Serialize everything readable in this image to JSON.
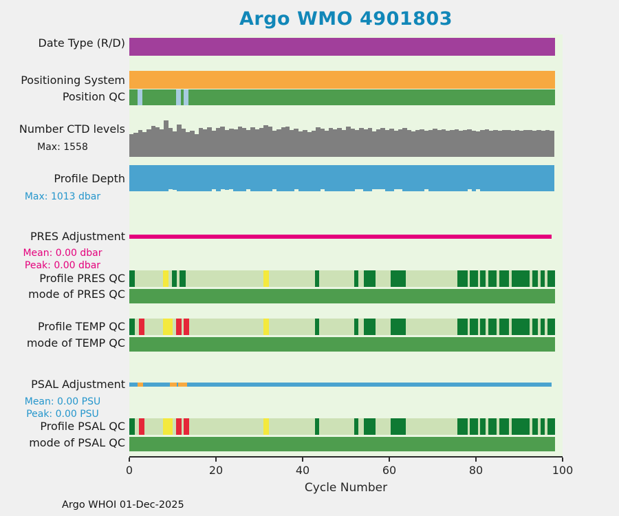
{
  "title": "Argo WMO 4901803",
  "labels": {
    "date_type": "Date Type (R/D)",
    "positioning_system": "Positioning System",
    "position_qc": "Position QC",
    "ctd_levels": "Number CTD levels",
    "ctd_max": "Max: 1558",
    "profile_depth": "Profile Depth",
    "depth_max": "Max: 1013 dbar",
    "pres_adjustment": "PRES Adjustment",
    "pres_mean": "Mean: 0.00 dbar",
    "pres_peak": "Peak: 0.00 dbar",
    "profile_pres_qc": "Profile PRES QC",
    "mode_pres_qc": "mode of PRES QC",
    "profile_temp_qc": "Profile TEMP QC",
    "mode_temp_qc": "mode of TEMP QC",
    "psal_adjustment": "PSAL Adjustment",
    "psal_mean": "Mean: 0.00 PSU",
    "psal_peak": "Peak: 0.00 PSU",
    "profile_psal_qc": "Profile PSAL QC",
    "mode_psal_qc": "mode of PSAL QC"
  },
  "axis": {
    "xlabel": "Cycle Number",
    "ticks": [
      "0",
      "20",
      "40",
      "60",
      "80",
      "100"
    ]
  },
  "footer": "Argo WHOI 01-Dec-2025",
  "chart_data": {
    "type": "heatmap",
    "title": "Argo WMO 4901803",
    "xlabel": "Cycle Number",
    "xlim": [
      0,
      100
    ],
    "x_ticks": [
      0,
      20,
      40,
      60,
      80,
      100
    ],
    "cycle_extent": [
      0,
      98.2
    ],
    "stats": {
      "ctd_levels_max": 1558,
      "profile_depth_max_dbar": 1013,
      "pres_adjustment_mean_dbar": 0.0,
      "pres_adjustment_peak_dbar": 0.0,
      "psal_adjustment_mean_psu": 0.0,
      "psal_adjustment_peak_psu": 0.0
    },
    "palette": {
      "purple": "#a13f9b",
      "orange": "#f7a941",
      "green": "#4e9d4e",
      "lightblue": "#a7cbe0",
      "gray": "#7f7f7f",
      "blue": "#4aa3cf",
      "magenta": "#e4007c",
      "qc_light": "#cde1b6",
      "qc_dark": "#0e7a33",
      "qc_yellow": "#f4e93d",
      "qc_red": "#e52639",
      "title": "#1187b8"
    },
    "rows": [
      {
        "id": "date_type",
        "kind": "strip",
        "base_color": "purple",
        "segments": []
      },
      {
        "id": "positioning_system",
        "kind": "strip",
        "base_color": "orange",
        "segments": []
      },
      {
        "id": "position_qc",
        "kind": "strip",
        "base_color": "green",
        "segments": [
          {
            "from": 1.9,
            "to": 3.0,
            "color": "lightblue"
          },
          {
            "from": 10.8,
            "to": 11.9,
            "color": "lightblue"
          },
          {
            "from": 12.5,
            "to": 13.6,
            "color": "lightblue"
          }
        ]
      },
      {
        "id": "ctd_levels",
        "kind": "bars_up",
        "color": "gray",
        "max": 1558,
        "values": [
          980,
          1020,
          1150,
          1060,
          1190,
          1320,
          1250,
          1180,
          1558,
          1240,
          1100,
          1380,
          1210,
          1050,
          1120,
          980,
          1230,
          1190,
          1260,
          1110,
          1240,
          1280,
          1150,
          1210,
          1190,
          1300,
          1230,
          1150,
          1260,
          1190,
          1220,
          1340,
          1280,
          1120,
          1190,
          1250,
          1300,
          1150,
          1200,
          1100,
          1160,
          1060,
          1120,
          1250,
          1210,
          1130,
          1220,
          1180,
          1240,
          1160,
          1290,
          1210,
          1140,
          1220,
          1190,
          1230,
          1100,
          1180,
          1240,
          1150,
          1210,
          1120,
          1180,
          1220,
          1160,
          1100,
          1150,
          1190,
          1130,
          1160,
          1200,
          1140,
          1170,
          1110,
          1150,
          1180,
          1120,
          1160,
          1190,
          1130,
          1100,
          1140,
          1170,
          1120,
          1150,
          1110,
          1140,
          1160,
          1120,
          1150,
          1130,
          1160,
          1140,
          1120,
          1150,
          1130,
          1140,
          1120
        ]
      },
      {
        "id": "profile_depth",
        "kind": "bars_down",
        "color": "blue",
        "max": 1013,
        "values": [
          1013,
          1013,
          1013,
          1013,
          1013,
          1013,
          1013,
          1013,
          1013,
          920,
          960,
          1013,
          1013,
          1013,
          1013,
          1013,
          1013,
          1013,
          1013,
          930,
          1013,
          920,
          950,
          930,
          1013,
          1013,
          1013,
          940,
          1013,
          1013,
          1013,
          1013,
          1013,
          930,
          1013,
          1013,
          1013,
          1013,
          940,
          1013,
          1013,
          1013,
          1013,
          1013,
          930,
          1013,
          1013,
          1013,
          1013,
          1013,
          1013,
          1013,
          920,
          945,
          1013,
          1013,
          930,
          920,
          945,
          1013,
          1013,
          930,
          920,
          1013,
          1013,
          1013,
          1013,
          1013,
          940,
          1013,
          1013,
          1013,
          1013,
          1013,
          1013,
          1013,
          1013,
          1013,
          930,
          1013,
          940,
          1013,
          1013,
          1013,
          1013,
          1013,
          1013,
          1013,
          1013,
          1013,
          1013,
          1013,
          1013,
          1013,
          1013,
          1013,
          1013,
          1013
        ]
      },
      {
        "id": "pres_adjustment",
        "kind": "line",
        "base_color": "magenta",
        "extent": [
          0,
          97.5
        ],
        "segments": []
      },
      {
        "id": "profile_pres_qc",
        "kind": "strip",
        "base_color": "qc_light",
        "segments": [
          {
            "from": 0.0,
            "to": 1.3,
            "color": "qc_dark"
          },
          {
            "from": 7.8,
            "to": 9.0,
            "color": "qc_yellow"
          },
          {
            "from": 9.8,
            "to": 11.0,
            "color": "qc_dark"
          },
          {
            "from": 11.6,
            "to": 13.0,
            "color": "qc_dark"
          },
          {
            "from": 31.0,
            "to": 32.2,
            "color": "qc_yellow"
          },
          {
            "from": 42.9,
            "to": 43.8,
            "color": "qc_dark"
          },
          {
            "from": 51.9,
            "to": 52.9,
            "color": "qc_dark"
          },
          {
            "from": 54.1,
            "to": 56.8,
            "color": "qc_dark"
          },
          {
            "from": 60.3,
            "to": 63.8,
            "color": "qc_dark"
          },
          {
            "from": 75.7,
            "to": 78.1,
            "color": "qc_dark"
          },
          {
            "from": 78.6,
            "to": 80.5,
            "color": "qc_dark"
          },
          {
            "from": 81.0,
            "to": 82.2,
            "color": "qc_dark"
          },
          {
            "from": 82.9,
            "to": 84.8,
            "color": "qc_dark"
          },
          {
            "from": 85.4,
            "to": 87.6,
            "color": "qc_dark"
          },
          {
            "from": 88.3,
            "to": 92.4,
            "color": "qc_dark"
          },
          {
            "from": 93.0,
            "to": 94.3,
            "color": "qc_dark"
          },
          {
            "from": 94.9,
            "to": 95.9,
            "color": "qc_dark"
          },
          {
            "from": 96.5,
            "to": 98.2,
            "color": "qc_dark"
          }
        ]
      },
      {
        "id": "mode_pres_qc",
        "kind": "strip",
        "base_color": "green",
        "segments": []
      },
      {
        "id": "profile_temp_qc",
        "kind": "strip",
        "base_color": "qc_light",
        "segments": [
          {
            "from": 0.0,
            "to": 1.3,
            "color": "qc_dark"
          },
          {
            "from": 2.2,
            "to": 3.5,
            "color": "qc_red"
          },
          {
            "from": 7.8,
            "to": 10.0,
            "color": "qc_yellow"
          },
          {
            "from": 10.8,
            "to": 12.1,
            "color": "qc_red"
          },
          {
            "from": 12.5,
            "to": 13.8,
            "color": "qc_red"
          },
          {
            "from": 31.0,
            "to": 32.2,
            "color": "qc_yellow"
          },
          {
            "from": 42.9,
            "to": 43.8,
            "color": "qc_dark"
          },
          {
            "from": 51.9,
            "to": 52.9,
            "color": "qc_dark"
          },
          {
            "from": 54.1,
            "to": 56.8,
            "color": "qc_dark"
          },
          {
            "from": 60.3,
            "to": 63.8,
            "color": "qc_dark"
          },
          {
            "from": 75.7,
            "to": 78.1,
            "color": "qc_dark"
          },
          {
            "from": 78.6,
            "to": 80.5,
            "color": "qc_dark"
          },
          {
            "from": 81.0,
            "to": 82.2,
            "color": "qc_dark"
          },
          {
            "from": 82.9,
            "to": 84.8,
            "color": "qc_dark"
          },
          {
            "from": 85.4,
            "to": 87.6,
            "color": "qc_dark"
          },
          {
            "from": 88.3,
            "to": 92.4,
            "color": "qc_dark"
          },
          {
            "from": 93.0,
            "to": 94.3,
            "color": "qc_dark"
          },
          {
            "from": 94.9,
            "to": 95.9,
            "color": "qc_dark"
          },
          {
            "from": 96.5,
            "to": 98.2,
            "color": "qc_dark"
          }
        ]
      },
      {
        "id": "mode_temp_qc",
        "kind": "strip",
        "base_color": "green",
        "segments": []
      },
      {
        "id": "psal_adjustment",
        "kind": "line",
        "base_color": "blue",
        "extent": [
          0,
          97.5
        ],
        "segments": [
          {
            "from": 1.9,
            "to": 3.2,
            "color": "orange"
          },
          {
            "from": 9.4,
            "to": 11.0,
            "color": "orange"
          },
          {
            "from": 11.3,
            "to": 13.3,
            "color": "orange"
          }
        ]
      },
      {
        "id": "profile_psal_qc",
        "kind": "strip",
        "base_color": "qc_light",
        "segments": [
          {
            "from": 0.0,
            "to": 1.3,
            "color": "qc_dark"
          },
          {
            "from": 2.2,
            "to": 3.5,
            "color": "qc_red"
          },
          {
            "from": 7.8,
            "to": 10.0,
            "color": "qc_yellow"
          },
          {
            "from": 10.8,
            "to": 12.1,
            "color": "qc_red"
          },
          {
            "from": 12.5,
            "to": 13.8,
            "color": "qc_red"
          },
          {
            "from": 31.0,
            "to": 32.2,
            "color": "qc_yellow"
          },
          {
            "from": 42.9,
            "to": 43.8,
            "color": "qc_dark"
          },
          {
            "from": 51.9,
            "to": 52.9,
            "color": "qc_dark"
          },
          {
            "from": 54.1,
            "to": 56.8,
            "color": "qc_dark"
          },
          {
            "from": 60.3,
            "to": 63.8,
            "color": "qc_dark"
          },
          {
            "from": 75.7,
            "to": 78.1,
            "color": "qc_dark"
          },
          {
            "from": 78.6,
            "to": 80.5,
            "color": "qc_dark"
          },
          {
            "from": 81.0,
            "to": 82.2,
            "color": "qc_dark"
          },
          {
            "from": 82.9,
            "to": 84.8,
            "color": "qc_dark"
          },
          {
            "from": 85.4,
            "to": 87.6,
            "color": "qc_dark"
          },
          {
            "from": 88.3,
            "to": 92.4,
            "color": "qc_dark"
          },
          {
            "from": 93.0,
            "to": 94.3,
            "color": "qc_dark"
          },
          {
            "from": 94.9,
            "to": 95.9,
            "color": "qc_dark"
          },
          {
            "from": 96.5,
            "to": 98.2,
            "color": "qc_dark"
          }
        ]
      },
      {
        "id": "mode_psal_qc",
        "kind": "strip",
        "base_color": "green",
        "segments": []
      }
    ]
  }
}
